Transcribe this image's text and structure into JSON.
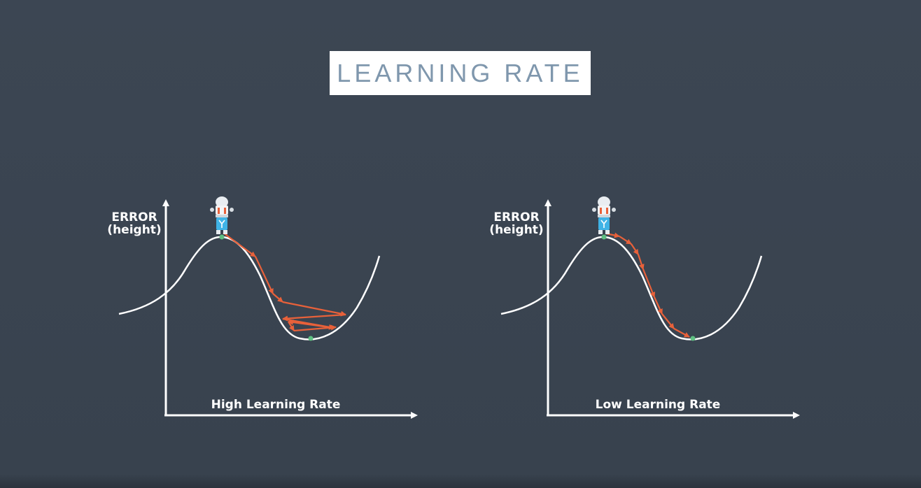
{
  "title": "LEARNING RATE",
  "colors": {
    "background": "#3b4552",
    "title_text": "#7f97ad",
    "curve": "#ffffff",
    "arrows": "#e8613a",
    "point": "#5fbf82"
  },
  "panels": [
    {
      "y_label_line1": "ERROR",
      "y_label_line2": "(height)",
      "x_label": "High Learning Rate",
      "icon": "robot-icon"
    },
    {
      "y_label_line1": "ERROR",
      "y_label_line2": "(height)",
      "x_label": "Low Learning Rate",
      "icon": "robot-icon"
    }
  ]
}
